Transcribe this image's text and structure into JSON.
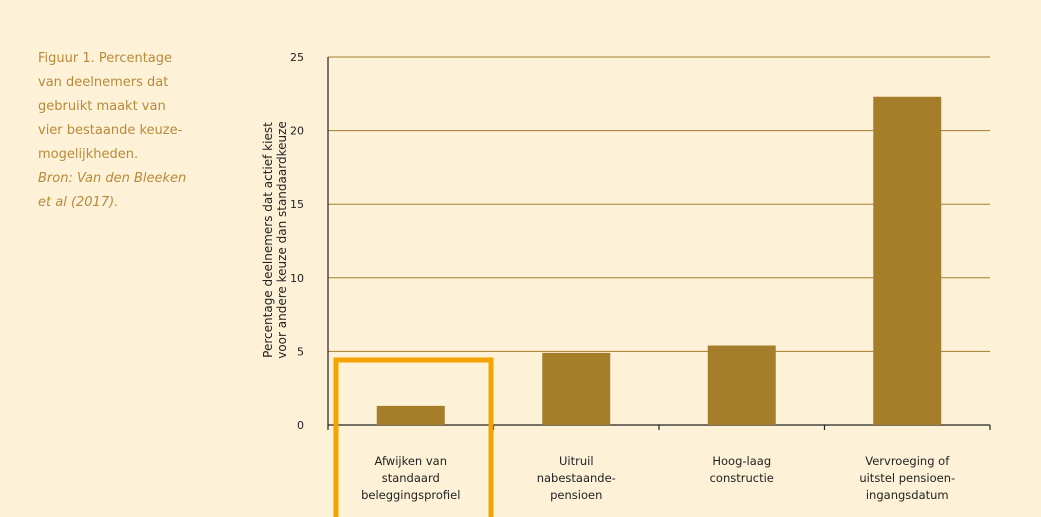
{
  "caption": {
    "lines": [
      "Figuur 1. Percentage",
      "van deelnemers dat",
      "gebruikt maakt van",
      "vier bestaande keuze-",
      "mogelijkheden."
    ],
    "source_lines": [
      "Bron: Van den Bleeken",
      "et al (2017)."
    ]
  },
  "colors": {
    "background": "#fdf2d8",
    "bar": "#a67e2b",
    "grid": "#a67e2b",
    "caption": "#b9893a",
    "highlight": "#f5a300"
  },
  "chart_data": {
    "type": "bar",
    "ylabel_lines": [
      "Percentage deelnemers dat actief kiest",
      "voor andere keuze dan standaardkeuze"
    ],
    "xlabel": "",
    "ylim": [
      0,
      25
    ],
    "yticks": [
      0,
      5,
      10,
      15,
      20,
      25
    ],
    "grid": true,
    "categories": [
      [
        "Afwijken van",
        "standaard",
        "beleggingsprofiel"
      ],
      [
        "Uitruil",
        "nabestaande-",
        "pensioen"
      ],
      [
        "Hoog-laag",
        "constructie"
      ],
      [
        "Vervroeging of",
        "uitstel pensioen-",
        "ingangsdatum"
      ]
    ],
    "values": [
      1.3,
      4.9,
      5.4,
      22.3
    ],
    "highlighted_category_index": 0
  }
}
